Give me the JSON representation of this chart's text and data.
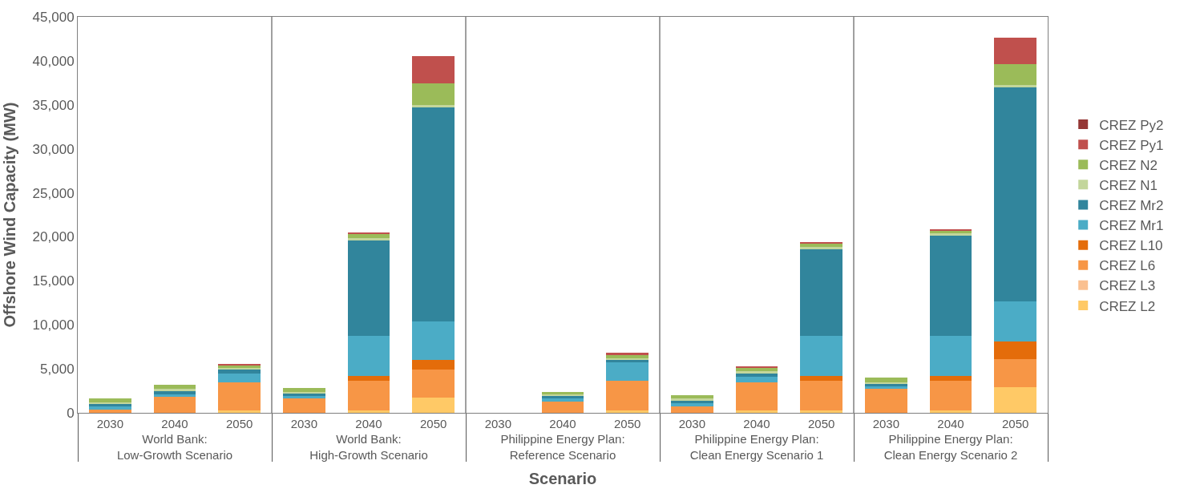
{
  "chart_data": {
    "type": "bar",
    "stacked": true,
    "xlabel": "Scenario",
    "ylabel": "Offshore Wind Capacity (MW)",
    "categories": [
      "2030",
      "2040",
      "2050",
      "2030",
      "2040",
      "2050",
      "2030",
      "2040",
      "2050",
      "2030",
      "2040",
      "2050",
      "2030",
      "2040",
      "2050"
    ],
    "annotations": [
      "World Bank:\nLow-Growth Scenario",
      "World Bank:\nHigh-Growth Scenario",
      "Philippine Energy Plan:\nReference Scenario",
      "Philippine Energy Plan:\nClean Energy Scenario 1",
      "Philippine Energy Plan:\nClean Energy Scenario 2"
    ],
    "ylim": [
      0,
      45000
    ],
    "yticks": [
      {
        "value": 0,
        "label": "0"
      },
      {
        "value": 5000,
        "label": "5,000"
      },
      {
        "value": 10000,
        "label": "10,000"
      },
      {
        "value": 15000,
        "label": "15,000"
      },
      {
        "value": 20000,
        "label": "20,000"
      },
      {
        "value": 25000,
        "label": "25,000"
      },
      {
        "value": 30000,
        "label": "30,000"
      },
      {
        "value": 35000,
        "label": "35,000"
      },
      {
        "value": 40000,
        "label": "40,000"
      },
      {
        "value": 45000,
        "label": "45,000"
      }
    ],
    "legend": "right",
    "series": [
      {
        "name": "CREZ L2",
        "color": "#ffc966",
        "values": [
          0,
          0,
          300,
          0,
          300,
          1700,
          0,
          0,
          300,
          0,
          300,
          300,
          0,
          300,
          2900
        ]
      },
      {
        "name": "CREZ L3",
        "color": "#fac090",
        "values": [
          0,
          0,
          0,
          0,
          0,
          0,
          0,
          0,
          0,
          0,
          0,
          0,
          0,
          0,
          0
        ]
      },
      {
        "name": "CREZ L6",
        "color": "#f79646",
        "values": [
          400,
          1800,
          3200,
          1600,
          3300,
          3200,
          0,
          1300,
          3300,
          700,
          3200,
          3300,
          2700,
          3300,
          3200
        ]
      },
      {
        "name": "CREZ L10",
        "color": "#e46c0a",
        "values": [
          0,
          0,
          0,
          0,
          600,
          1100,
          0,
          0,
          0,
          0,
          0,
          600,
          0,
          600,
          2000
        ]
      },
      {
        "name": "CREZ Mr1",
        "color": "#4bacc6",
        "values": [
          300,
          300,
          1000,
          300,
          4500,
          4400,
          0,
          300,
          2100,
          400,
          600,
          4500,
          300,
          4500,
          4600
        ]
      },
      {
        "name": "CREZ Mr2",
        "color": "#31859c",
        "values": [
          300,
          400,
          400,
          300,
          10900,
          24300,
          0,
          300,
          300,
          300,
          400,
          9900,
          300,
          11400,
          24300
        ]
      },
      {
        "name": "CREZ N1",
        "color": "#c3d69b",
        "values": [
          200,
          200,
          200,
          200,
          300,
          300,
          0,
          200,
          200,
          200,
          200,
          300,
          200,
          300,
          300
        ]
      },
      {
        "name": "CREZ N2",
        "color": "#9bbb59",
        "values": [
          400,
          500,
          300,
          400,
          400,
          2400,
          0,
          300,
          400,
          400,
          400,
          300,
          500,
          300,
          2300
        ]
      },
      {
        "name": "CREZ Py1",
        "color": "#c0504d",
        "values": [
          0,
          0,
          200,
          0,
          200,
          3100,
          0,
          0,
          200,
          0,
          200,
          200,
          0,
          200,
          3000
        ]
      },
      {
        "name": "CREZ Py2",
        "color": "#953735",
        "values": [
          0,
          0,
          0,
          0,
          0,
          0,
          0,
          0,
          0,
          0,
          0,
          0,
          0,
          0,
          0
        ]
      }
    ]
  }
}
